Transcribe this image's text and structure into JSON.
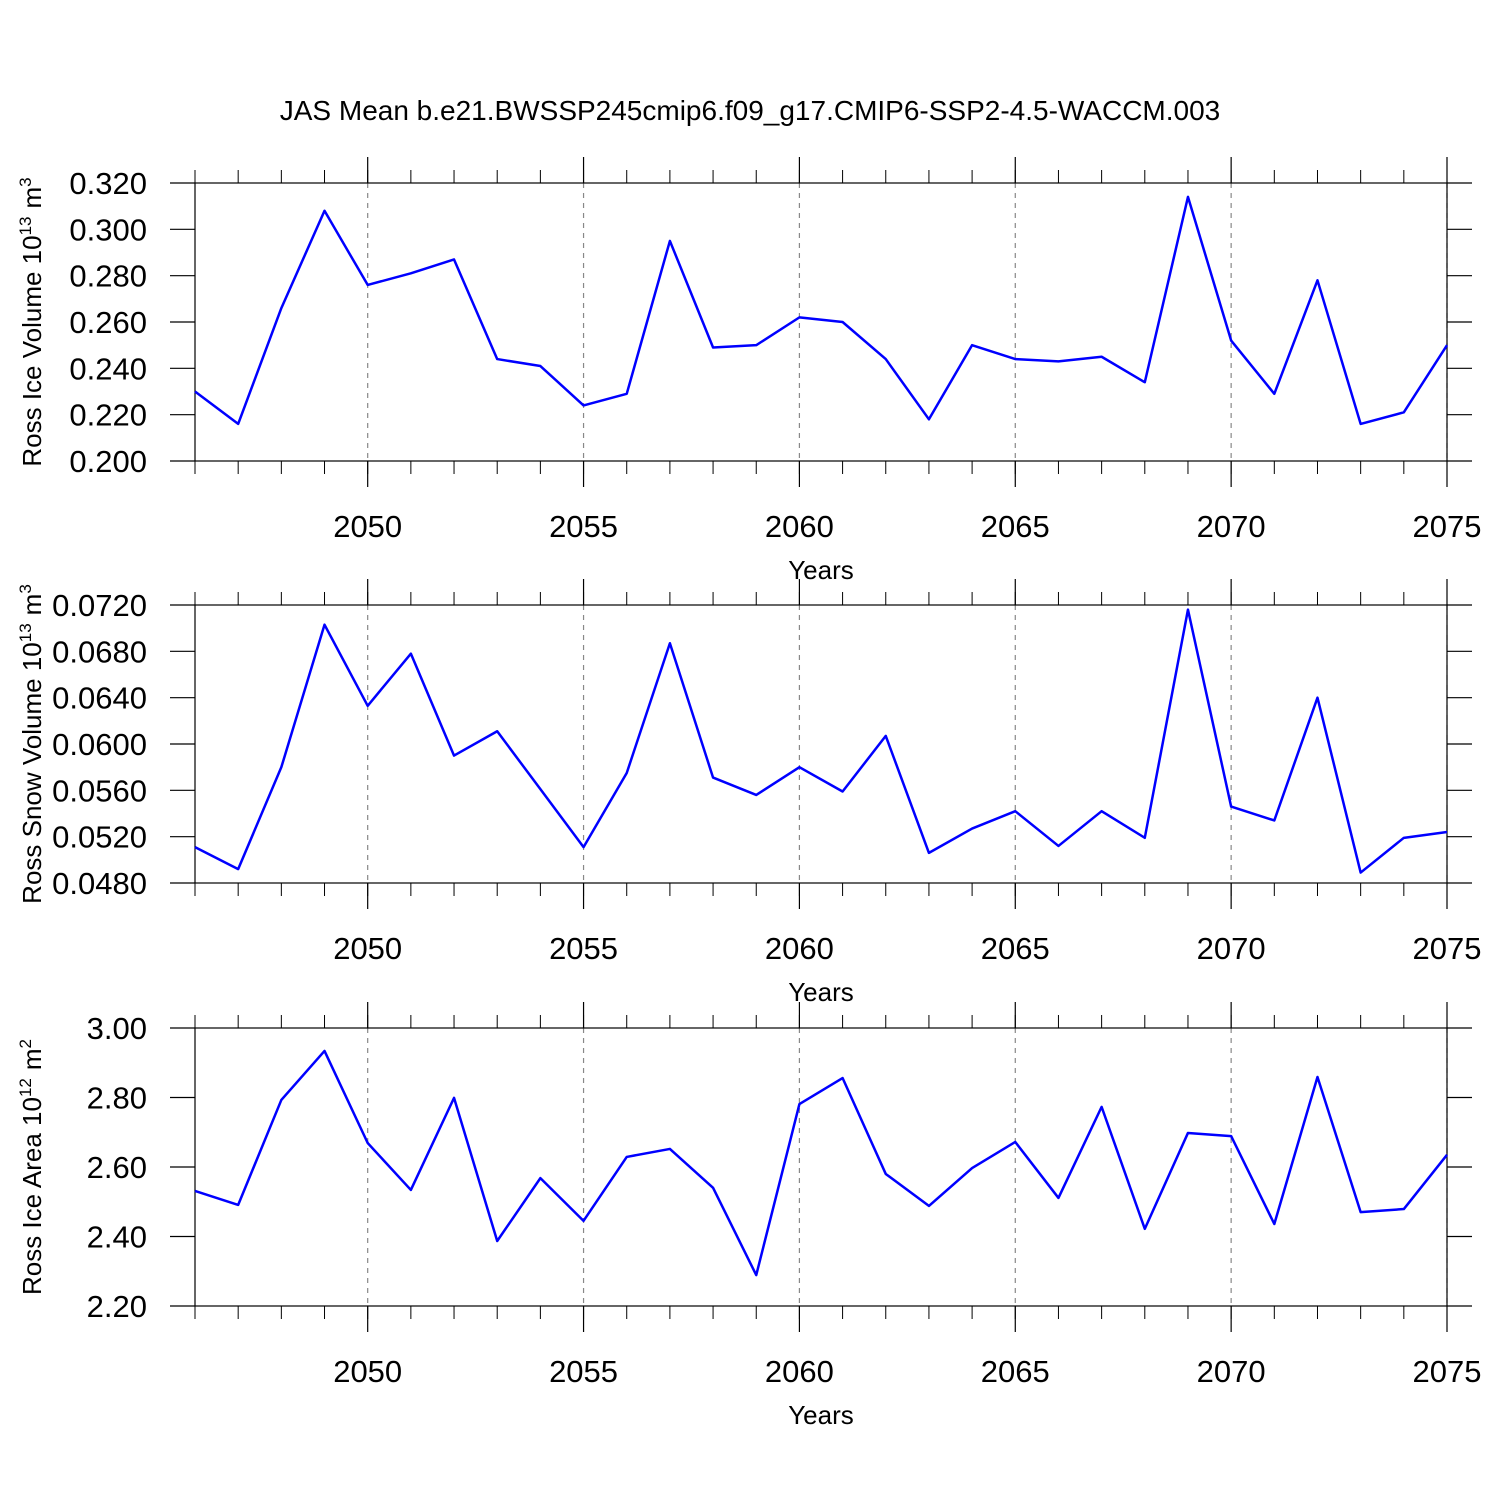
{
  "chart_data": [
    {
      "type": "line",
      "title": "JAS Mean b.e21.BWSSP245cmip6.f09_g17.CMIP6-SSP2-4.5-WACCM.003",
      "ylabel_parts": [
        "Ross Ice Volume 10",
        "13",
        "m",
        "3"
      ],
      "xlabel": "Years",
      "x": [
        2046,
        2047,
        2048,
        2049,
        2050,
        2051,
        2052,
        2053,
        2054,
        2055,
        2056,
        2057,
        2058,
        2059,
        2060,
        2061,
        2062,
        2063,
        2064,
        2065,
        2066,
        2067,
        2068,
        2069,
        2070,
        2071,
        2072,
        2073,
        2074,
        2075
      ],
      "series": [
        {
          "color": "#0000ff",
          "values": [
            0.23,
            0.216,
            0.266,
            0.308,
            0.276,
            0.281,
            0.287,
            0.244,
            0.241,
            0.224,
            0.229,
            0.295,
            0.249,
            0.25,
            0.262,
            0.26,
            0.244,
            0.218,
            0.25,
            0.244,
            0.243,
            0.245,
            0.234,
            0.314,
            0.252,
            0.229,
            0.278,
            0.216,
            0.221,
            0.25
          ]
        }
      ],
      "xlim": [
        2046,
        2075
      ],
      "xticks": [
        2050,
        2055,
        2060,
        2065,
        2070,
        2075
      ],
      "ylim": [
        0.2,
        0.32
      ],
      "yticks": [
        {
          "value": 0.2,
          "label": "0.200"
        },
        {
          "value": 0.22,
          "label": "0.220"
        },
        {
          "value": 0.24,
          "label": "0.240"
        },
        {
          "value": 0.26,
          "label": "0.260"
        },
        {
          "value": 0.28,
          "label": "0.280"
        },
        {
          "value": 0.3,
          "label": "0.300"
        },
        {
          "value": 0.32,
          "label": "0.320"
        }
      ],
      "xgrid": true
    },
    {
      "type": "line",
      "ylabel_parts": [
        "Ross Snow Volume 10",
        "13",
        "m",
        "3"
      ],
      "xlabel": "Years",
      "x": [
        2046,
        2047,
        2048,
        2049,
        2050,
        2051,
        2052,
        2053,
        2054,
        2055,
        2056,
        2057,
        2058,
        2059,
        2060,
        2061,
        2062,
        2063,
        2064,
        2065,
        2066,
        2067,
        2068,
        2069,
        2070,
        2071,
        2072,
        2073,
        2074,
        2075
      ],
      "series": [
        {
          "color": "#0000ff",
          "values": [
            0.0511,
            0.0492,
            0.058,
            0.0703,
            0.0633,
            0.0678,
            0.059,
            0.0611,
            0.0561,
            0.0511,
            0.0575,
            0.0687,
            0.0571,
            0.0556,
            0.058,
            0.0559,
            0.0607,
            0.0506,
            0.0527,
            0.0542,
            0.0512,
            0.0542,
            0.0519,
            0.0716,
            0.0546,
            0.0534,
            0.064,
            0.0489,
            0.0519,
            0.0524
          ]
        }
      ],
      "xlim": [
        2046,
        2075
      ],
      "xticks": [
        2050,
        2055,
        2060,
        2065,
        2070,
        2075
      ],
      "ylim": [
        0.048,
        0.072
      ],
      "yticks": [
        {
          "value": 0.048,
          "label": "0.0480"
        },
        {
          "value": 0.052,
          "label": "0.0520"
        },
        {
          "value": 0.056,
          "label": "0.0560"
        },
        {
          "value": 0.06,
          "label": "0.0600"
        },
        {
          "value": 0.064,
          "label": "0.0640"
        },
        {
          "value": 0.068,
          "label": "0.0680"
        },
        {
          "value": 0.072,
          "label": "0.0720"
        }
      ],
      "xgrid": true
    },
    {
      "type": "line",
      "ylabel_parts": [
        "Ross Ice Area 10",
        "12",
        "m",
        "2"
      ],
      "xlabel": "Years",
      "x": [
        2046,
        2047,
        2048,
        2049,
        2050,
        2051,
        2052,
        2053,
        2054,
        2055,
        2056,
        2057,
        2058,
        2059,
        2060,
        2061,
        2062,
        2063,
        2064,
        2065,
        2066,
        2067,
        2068,
        2069,
        2070,
        2071,
        2072,
        2073,
        2074,
        2075
      ],
      "series": [
        {
          "color": "#0000ff",
          "values": [
            2.531,
            2.491,
            2.793,
            2.934,
            2.669,
            2.534,
            2.799,
            2.387,
            2.568,
            2.445,
            2.629,
            2.652,
            2.54,
            2.289,
            2.781,
            2.856,
            2.58,
            2.488,
            2.597,
            2.672,
            2.511,
            2.773,
            2.422,
            2.698,
            2.689,
            2.436,
            2.859,
            2.47,
            2.479,
            2.635
          ]
        }
      ],
      "xlim": [
        2046,
        2075
      ],
      "xticks": [
        2050,
        2055,
        2060,
        2065,
        2070,
        2075
      ],
      "ylim": [
        2.2,
        3.0
      ],
      "yticks": [
        {
          "value": 2.2,
          "label": "2.20"
        },
        {
          "value": 2.4,
          "label": "2.40"
        },
        {
          "value": 2.6,
          "label": "2.60"
        },
        {
          "value": 2.8,
          "label": "2.80"
        },
        {
          "value": 3.0,
          "label": "3.00"
        }
      ],
      "xgrid": true
    }
  ]
}
